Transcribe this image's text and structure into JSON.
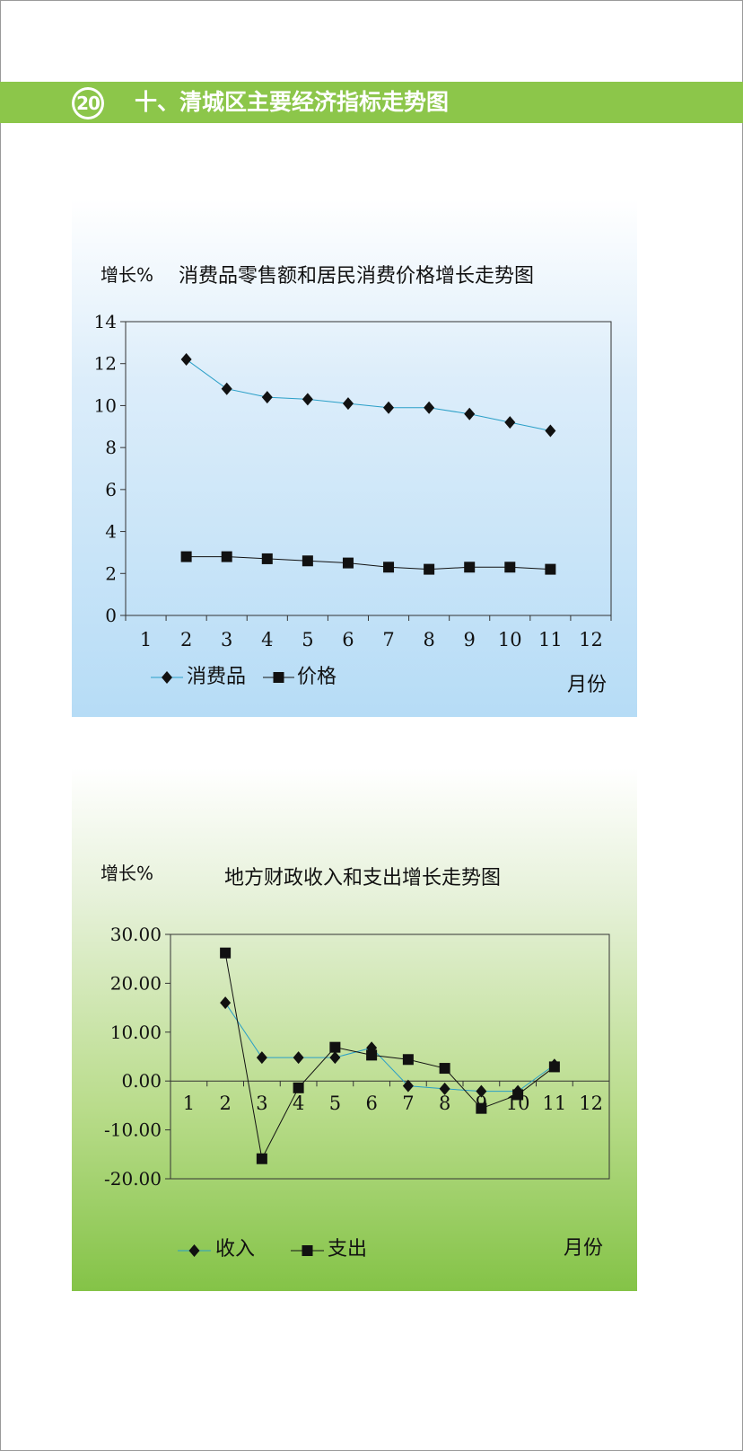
{
  "header": {
    "page_number": "20",
    "title": "十、清城区主要经济指标走势图"
  },
  "chart_data": [
    {
      "type": "line",
      "title": "消费品零售额和居民消费价格增长走势图",
      "ylabel": "增长%",
      "xlabel": "月份",
      "x": [
        2,
        3,
        4,
        5,
        6,
        7,
        8,
        9,
        10,
        11
      ],
      "categories": [
        "1",
        "2",
        "3",
        "4",
        "5",
        "6",
        "7",
        "8",
        "9",
        "10",
        "11",
        "12"
      ],
      "xlim": [
        1,
        12
      ],
      "ylim": [
        0,
        14
      ],
      "yticks": [
        0,
        2,
        4,
        6,
        8,
        10,
        12,
        14
      ],
      "ytick_labels": [
        "0",
        "2",
        "4",
        "6",
        "8",
        "10",
        "12",
        "14"
      ],
      "grid": false,
      "legend": "bottom-left",
      "series": [
        {
          "name": "消费品",
          "marker": "diamond",
          "line_color": "#2a9fc7",
          "values": [
            12.2,
            10.8,
            10.4,
            10.3,
            10.1,
            9.9,
            9.9,
            9.6,
            9.2,
            8.8
          ]
        },
        {
          "name": "价格",
          "marker": "square",
          "line_color": "#111111",
          "values": [
            2.8,
            2.8,
            2.7,
            2.6,
            2.5,
            2.3,
            2.2,
            2.3,
            2.3,
            2.2
          ]
        }
      ]
    },
    {
      "type": "line",
      "title": "地方财政收入和支出增长走势图",
      "ylabel": "增长%",
      "xlabel": "月份",
      "x": [
        2,
        3,
        4,
        5,
        6,
        7,
        8,
        9,
        10,
        11
      ],
      "categories": [
        "1",
        "2",
        "3",
        "4",
        "5",
        "6",
        "7",
        "8",
        "9",
        "10",
        "11",
        "12"
      ],
      "xlim": [
        1,
        12
      ],
      "ylim": [
        -20,
        30
      ],
      "yticks": [
        -20,
        -10,
        0,
        10,
        20,
        30
      ],
      "ytick_labels": [
        "-20.00",
        "-10.00",
        "0.00",
        "10.00",
        "20.00",
        "30.00"
      ],
      "grid": false,
      "legend": "bottom-left",
      "series": [
        {
          "name": "收入",
          "marker": "diamond",
          "line_color": "#2a9fc7",
          "values": [
            16.0,
            4.8,
            4.8,
            4.8,
            6.8,
            -1.0,
            -1.6,
            -2.1,
            -2.1,
            3.3
          ]
        },
        {
          "name": "支出",
          "marker": "square",
          "line_color": "#111111",
          "values": [
            26.2,
            -15.9,
            -1.4,
            6.9,
            5.3,
            4.4,
            2.6,
            -5.6,
            -2.8,
            2.9
          ]
        }
      ]
    }
  ]
}
